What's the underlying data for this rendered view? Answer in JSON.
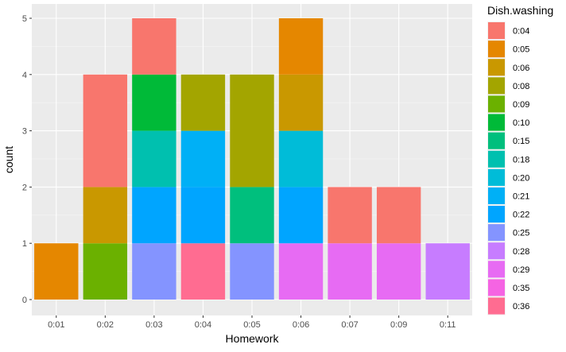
{
  "chart_data": {
    "type": "bar",
    "stacked": true,
    "xlabel": "Homework",
    "ylabel": "count",
    "ylim": [
      0,
      5.3
    ],
    "y_ticks": [
      0,
      1,
      2,
      3,
      4,
      5
    ],
    "grid": true,
    "legend_title": "Dish.washing",
    "legend_position": "right",
    "categories": [
      "0:01",
      "0:02",
      "0:03",
      "0:04",
      "0:05",
      "0:06",
      "0:07",
      "0:09",
      "0:11"
    ],
    "series": [
      {
        "name": "0:04",
        "color": "#F8766D",
        "values": [
          0,
          2,
          1,
          0,
          0,
          0,
          1,
          1,
          0
        ]
      },
      {
        "name": "0:05",
        "color": "#E58700",
        "values": [
          1,
          0,
          0,
          0,
          0,
          1,
          0,
          0,
          0
        ]
      },
      {
        "name": "0:06",
        "color": "#C99800",
        "values": [
          0,
          1,
          0,
          0,
          0,
          1,
          0,
          0,
          0
        ]
      },
      {
        "name": "0:08",
        "color": "#A3A500",
        "values": [
          0,
          0,
          0,
          1,
          2,
          0,
          0,
          0,
          0
        ]
      },
      {
        "name": "0:09",
        "color": "#6BB100",
        "values": [
          0,
          1,
          0,
          0,
          0,
          0,
          0,
          0,
          0
        ]
      },
      {
        "name": "0:10",
        "color": "#00BA38",
        "values": [
          0,
          0,
          1,
          0,
          0,
          0,
          0,
          0,
          0
        ]
      },
      {
        "name": "0:15",
        "color": "#00BF7D",
        "values": [
          0,
          0,
          0,
          0,
          1,
          0,
          0,
          0,
          0
        ]
      },
      {
        "name": "0:18",
        "color": "#00C0AF",
        "values": [
          0,
          0,
          1,
          0,
          0,
          0,
          0,
          0,
          0
        ]
      },
      {
        "name": "0:20",
        "color": "#00BCD8",
        "values": [
          0,
          0,
          0,
          0,
          0,
          1,
          0,
          0,
          0
        ]
      },
      {
        "name": "0:21",
        "color": "#00B0F6",
        "values": [
          0,
          0,
          0,
          1,
          0,
          0,
          0,
          0,
          0
        ]
      },
      {
        "name": "0:22",
        "color": "#00A5FF",
        "values": [
          0,
          0,
          1,
          1,
          0,
          1,
          0,
          0,
          0
        ]
      },
      {
        "name": "0:25",
        "color": "#8494FF",
        "values": [
          0,
          0,
          1,
          0,
          1,
          0,
          0,
          0,
          0
        ]
      },
      {
        "name": "0:28",
        "color": "#C77CFF",
        "values": [
          0,
          0,
          0,
          0,
          0,
          0,
          0,
          0,
          1
        ]
      },
      {
        "name": "0:29",
        "color": "#E76BF3",
        "values": [
          0,
          0,
          0,
          0,
          0,
          1,
          1,
          1,
          0
        ]
      },
      {
        "name": "0:35",
        "color": "#F564E3",
        "values": [
          0,
          0,
          0,
          0,
          0,
          0,
          0,
          0,
          0
        ]
      },
      {
        "name": "0:36",
        "color": "#FF6C91",
        "values": [
          0,
          0,
          0,
          1,
          0,
          0,
          0,
          0,
          0
        ]
      }
    ]
  }
}
